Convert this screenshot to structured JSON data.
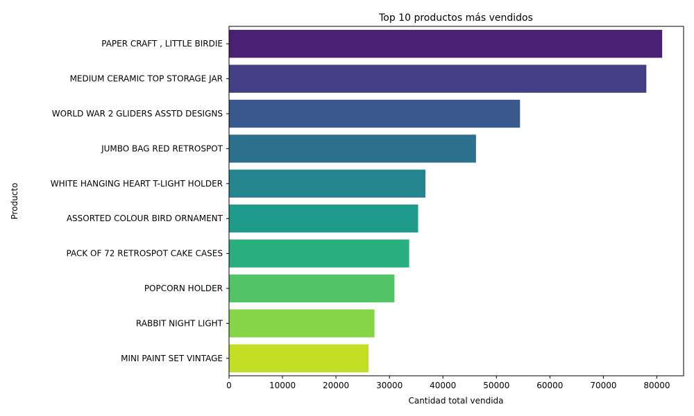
{
  "chart_data": {
    "type": "bar",
    "orientation": "horizontal",
    "title": "Top 10 productos más vendidos",
    "xlabel": "Cantidad total vendida",
    "ylabel": "Producto",
    "xlim": [
      0,
      85000
    ],
    "xticks": [
      0,
      10000,
      20000,
      30000,
      40000,
      50000,
      60000,
      70000,
      80000
    ],
    "grid": false,
    "categories": [
      "PAPER CRAFT , LITTLE BIRDIE",
      "MEDIUM CERAMIC TOP STORAGE JAR",
      "WORLD WAR 2 GLIDERS ASSTD DESIGNS",
      "JUMBO BAG RED RETROSPOT",
      "WHITE HANGING HEART T-LIGHT HOLDER",
      "ASSORTED COLOUR BIRD ORNAMENT",
      "PACK OF 72 RETROSPOT CAKE CASES",
      "POPCORN HOLDER",
      "RABBIT NIGHT LIGHT",
      "MINI PAINT SET VINTAGE"
    ],
    "values": [
      80995,
      78033,
      54415,
      46181,
      36725,
      35362,
      33693,
      30931,
      27202,
      26076
    ],
    "colors": [
      "#482173",
      "#433e85",
      "#38588c",
      "#2d708e",
      "#25858e",
      "#1e9b8a",
      "#2ab07f",
      "#52c569",
      "#86d549",
      "#c2df23"
    ]
  }
}
